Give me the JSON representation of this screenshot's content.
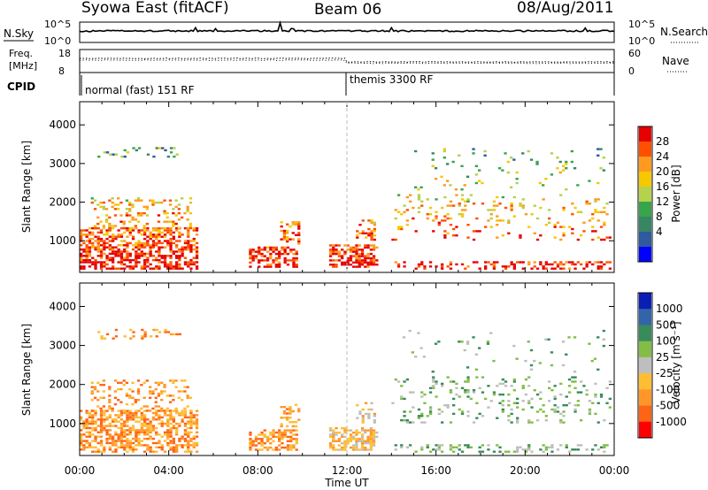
{
  "header": {
    "title_left": "Syowa East (fitACF)",
    "title_center": "Beam 06",
    "title_right": "08/Aug/2011"
  },
  "nsky_panel": {
    "label": "N.Sky",
    "left_ticks": [
      "10^5",
      "10^0"
    ],
    "right_label": "N.Search",
    "right_ticks": [
      "10^5",
      "10^0"
    ]
  },
  "freq_panel": {
    "label_line1": "Freq.",
    "label_line2": "[MHz]",
    "left_ticks": [
      "18",
      "8"
    ],
    "right_label": "Nave",
    "right_ticks": [
      "60",
      "0"
    ]
  },
  "cpid_panel": {
    "label": "CPID",
    "modes": [
      {
        "name": "normal (fast) 151 RF",
        "start_hour": 0
      },
      {
        "name": "themis 3300 RF",
        "start_hour": 12
      }
    ]
  },
  "x_axis": {
    "label": "Time UT",
    "ticks": [
      "00:00",
      "04:00",
      "08:00",
      "12:00",
      "16:00",
      "20:00",
      "00:00"
    ],
    "tick_hours": [
      0,
      4,
      8,
      12,
      16,
      20,
      24
    ],
    "range_hours": [
      0,
      24
    ]
  },
  "chart_data": [
    {
      "type": "heatmap",
      "name": "power",
      "ylabel": "Slant Range [km]",
      "yticks": [
        1000,
        2000,
        3000,
        4000
      ],
      "ylim": [
        180,
        4600
      ],
      "xlim_hours": [
        0,
        24
      ],
      "colorbar_label": "Power [dB]",
      "colorbar_ticks": [
        "28",
        "24",
        "20",
        "16",
        "12",
        "8",
        "4"
      ],
      "colorbar_colors": [
        "#e60000",
        "#ff5000",
        "#ff9a1e",
        "#f5c800",
        "#b4d24b",
        "#37a54b",
        "#378764",
        "#2d5aa0",
        "#0000ff"
      ]
    },
    {
      "type": "heatmap",
      "name": "velocity",
      "ylabel": "Slant Range [km]",
      "yticks": [
        1000,
        2000,
        3000,
        4000
      ],
      "ylim": [
        180,
        4600
      ],
      "xlim_hours": [
        0,
        24
      ],
      "colorbar_label": "Velocity [m s⁻¹]",
      "colorbar_ticks": [
        "1000",
        "500",
        "100",
        "25",
        "-25",
        "-100",
        "-500",
        "-1000"
      ],
      "colorbar_colors": [
        "#0a1eb4",
        "#3264aa",
        "#378c5a",
        "#82be46",
        "#bebebe",
        "#ffbe32",
        "#ff9628",
        "#ff6414",
        "#ff0000"
      ]
    }
  ]
}
